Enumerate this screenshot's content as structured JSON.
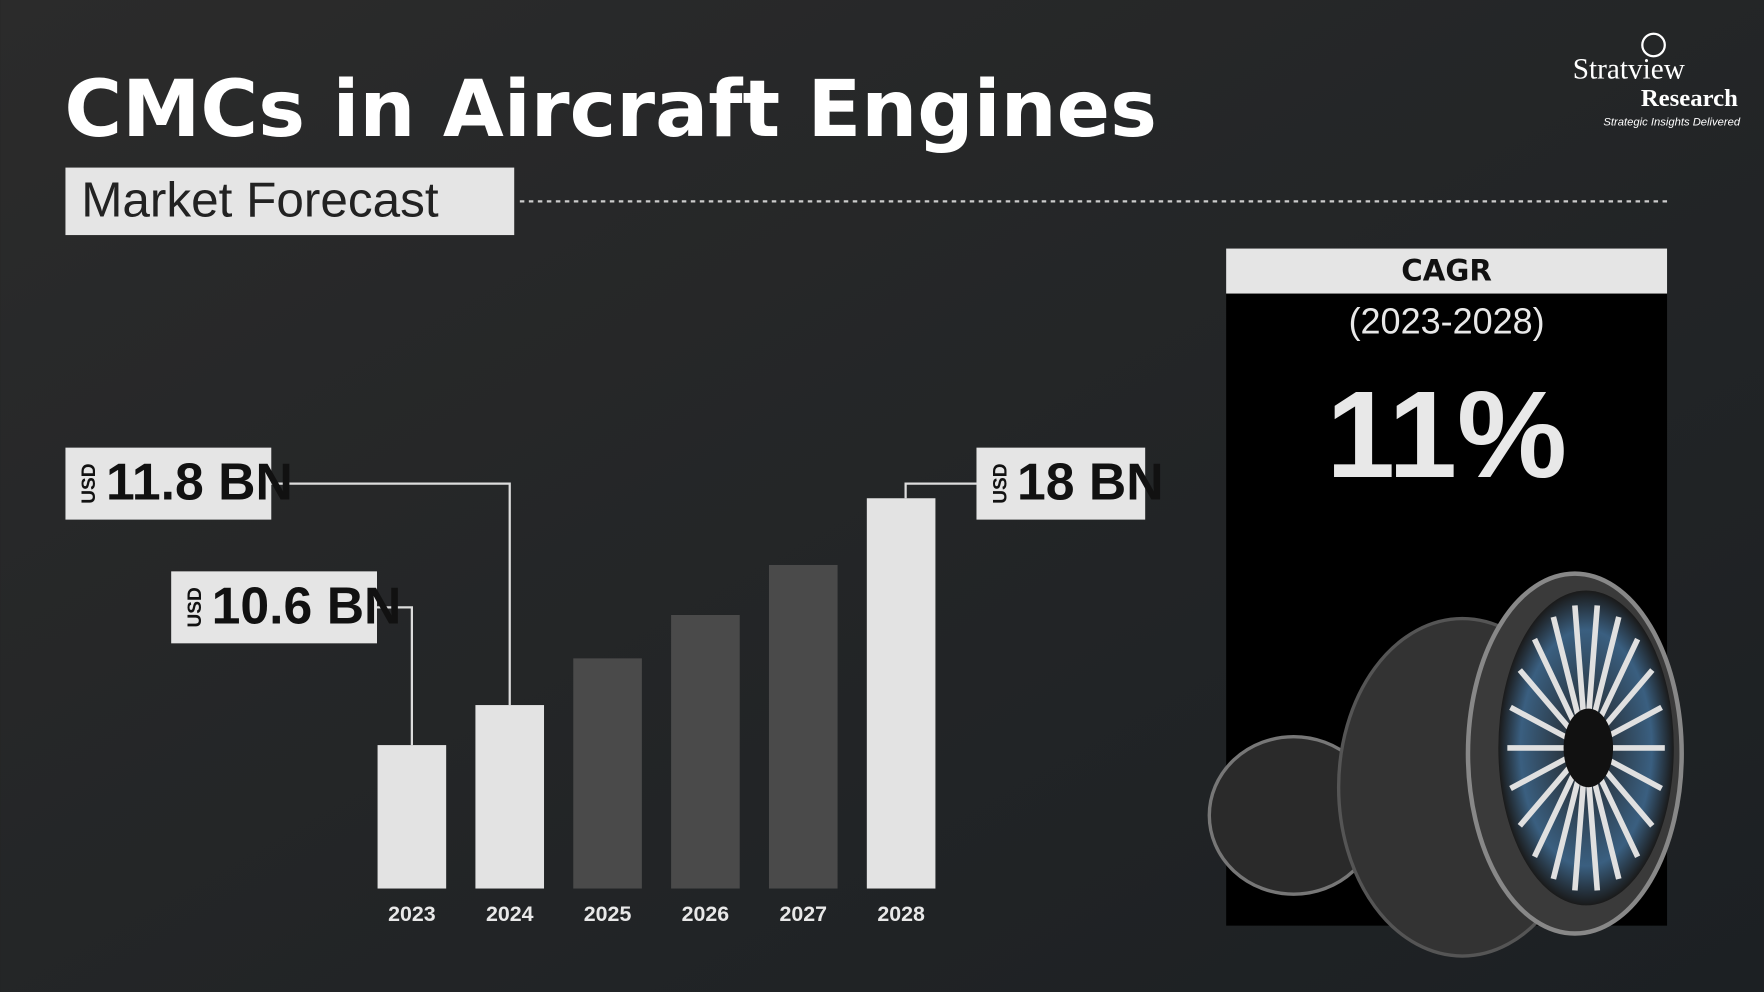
{
  "chart_data": {
    "type": "bar",
    "title": "CMCs in Aircraft Engines",
    "subtitle": "Market Forecast",
    "categories": [
      "2023",
      "2024",
      "2025",
      "2026",
      "2027",
      "2028"
    ],
    "values": [
      10.6,
      11.8,
      13.2,
      14.5,
      16.0,
      18
    ],
    "value_labels": [
      "10.6 BN",
      "11.8 BN",
      null,
      null,
      null,
      "18 BN"
    ],
    "unit": "USD",
    "colors": [
      "#e3e3e3",
      "#e3e3e3",
      "#4a4a4a",
      "#4a4a4a",
      "#4a4a4a",
      "#e3e3e3"
    ],
    "ylim": [
      6.3,
      18
    ]
  },
  "cagr": {
    "title": "CAGR",
    "period": "(2023-2028)",
    "value": "11%"
  },
  "brand": {
    "name": "Stratview",
    "name2": "Research",
    "tagline": "Strategic Insights Delivered"
  }
}
